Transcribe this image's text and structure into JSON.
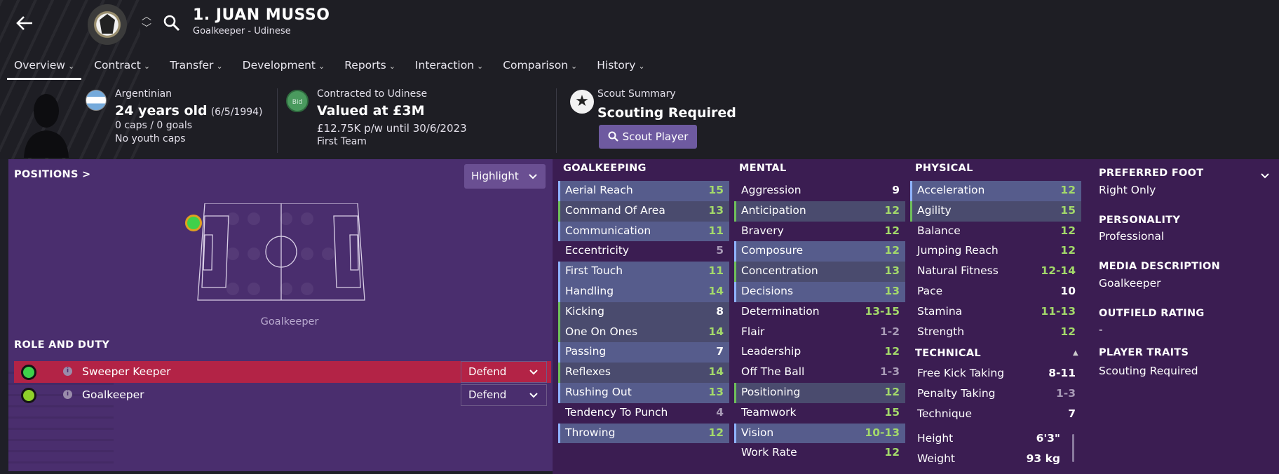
{
  "header": {
    "player_name": "1. JUAN MUSSO",
    "subtitle": "Goalkeeper - Udinese",
    "tabs": [
      {
        "label": "Overview",
        "active": true
      },
      {
        "label": "Contract"
      },
      {
        "label": "Transfer"
      },
      {
        "label": "Development"
      },
      {
        "label": "Reports"
      },
      {
        "label": "Interaction"
      },
      {
        "label": "Comparison"
      },
      {
        "label": "History"
      }
    ]
  },
  "info": {
    "nationality": "Argentinian",
    "age": "24 years old",
    "dob": "(6/5/1994)",
    "caps": "0 caps / 0 goals",
    "youth_caps": "No youth caps",
    "contract_label": "Contracted to Udinese",
    "value": "Valued at £3M",
    "wage": "£12.75K p/w until 30/6/2023",
    "squad": "First Team",
    "bid_label": "Bid",
    "scout_label": "Scout Summary",
    "scout_status": "Scouting Required",
    "scout_button": "Scout Player"
  },
  "positions": {
    "title": "POSITIONS >",
    "highlight": "Highlight",
    "position_label": "Goalkeeper"
  },
  "roles": {
    "title": "ROLE AND DUTY",
    "items": [
      {
        "name": "Sweeper Keeper",
        "duty": "Defend",
        "active": true
      },
      {
        "name": "Goalkeeper",
        "duty": "Defend",
        "active": false
      }
    ]
  },
  "attributes": {
    "goalkeeping_title": "GOALKEEPING",
    "goalkeeping": [
      {
        "name": "Aerial Reach",
        "value": "15"
      },
      {
        "name": "Command Of Area",
        "value": "13"
      },
      {
        "name": "Communication",
        "value": "11"
      },
      {
        "name": "Eccentricity",
        "value": "5"
      },
      {
        "name": "First Touch",
        "value": "11"
      },
      {
        "name": "Handling",
        "value": "14"
      },
      {
        "name": "Kicking",
        "value": "8"
      },
      {
        "name": "One On Ones",
        "value": "14"
      },
      {
        "name": "Passing",
        "value": "7"
      },
      {
        "name": "Reflexes",
        "value": "14"
      },
      {
        "name": "Rushing Out",
        "value": "13"
      },
      {
        "name": "Tendency To Punch",
        "value": "4"
      },
      {
        "name": "Throwing",
        "value": "12"
      }
    ],
    "mental_title": "MENTAL",
    "mental": [
      {
        "name": "Aggression",
        "value": "9"
      },
      {
        "name": "Anticipation",
        "value": "12"
      },
      {
        "name": "Bravery",
        "value": "12"
      },
      {
        "name": "Composure",
        "value": "12"
      },
      {
        "name": "Concentration",
        "value": "13"
      },
      {
        "name": "Decisions",
        "value": "13"
      },
      {
        "name": "Determination",
        "value": "13-15"
      },
      {
        "name": "Flair",
        "value": "1-2"
      },
      {
        "name": "Leadership",
        "value": "12"
      },
      {
        "name": "Off The Ball",
        "value": "1-3"
      },
      {
        "name": "Positioning",
        "value": "12"
      },
      {
        "name": "Teamwork",
        "value": "15"
      },
      {
        "name": "Vision",
        "value": "10-13"
      },
      {
        "name": "Work Rate",
        "value": "12"
      }
    ],
    "physical_title": "PHYSICAL",
    "physical": [
      {
        "name": "Acceleration",
        "value": "12"
      },
      {
        "name": "Agility",
        "value": "15"
      },
      {
        "name": "Balance",
        "value": "12"
      },
      {
        "name": "Jumping Reach",
        "value": "12"
      },
      {
        "name": "Natural Fitness",
        "value": "12-14"
      },
      {
        "name": "Pace",
        "value": "10"
      },
      {
        "name": "Stamina",
        "value": "11-13"
      },
      {
        "name": "Strength",
        "value": "12"
      }
    ],
    "technical_title": "TECHNICAL",
    "technical": [
      {
        "name": "Free Kick Taking",
        "value": "8-11"
      },
      {
        "name": "Penalty Taking",
        "value": "1-3"
      },
      {
        "name": "Technique",
        "value": "7"
      }
    ],
    "height_label": "Height",
    "height": "6'3\"",
    "weight_label": "Weight",
    "weight": "93 kg"
  },
  "side": {
    "foot_title": "PREFERRED FOOT",
    "foot": "Right Only",
    "personality_title": "PERSONALITY",
    "personality": "Professional",
    "media_title": "MEDIA DESCRIPTION",
    "media": "Goalkeeper",
    "outfield_title": "OUTFIELD RATING",
    "outfield": "-",
    "traits_title": "PLAYER TRAITS",
    "traits": "Scouting Required"
  }
}
